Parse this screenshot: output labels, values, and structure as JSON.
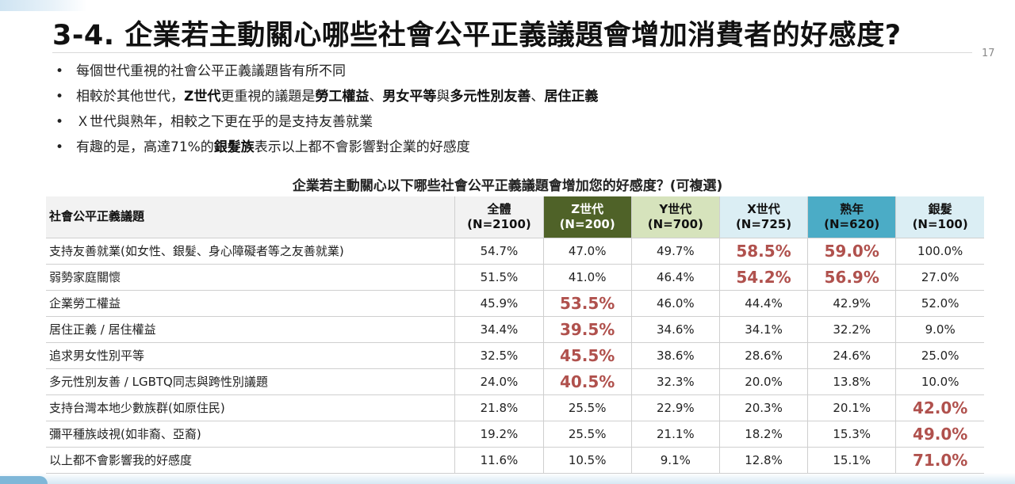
{
  "title": "3-4. 企業若主動關心哪些社會公平正義議題會增加消費者的好感度?",
  "page_number": "17",
  "bullets": [
    {
      "marker": "•",
      "parts": [
        {
          "text": "每個世代重視的社會公平正義議題皆有所不同",
          "bold": false
        }
      ]
    },
    {
      "marker": "•",
      "parts": [
        {
          "text": "相較於其他世代，",
          "bold": false
        },
        {
          "text": "Z世代",
          "bold": true
        },
        {
          "text": "更重視的議題是",
          "bold": false
        },
        {
          "text": "勞工權益",
          "bold": true
        },
        {
          "text": "、",
          "bold": false
        },
        {
          "text": "男女平等",
          "bold": true
        },
        {
          "text": "與",
          "bold": false
        },
        {
          "text": "多元性別友善",
          "bold": true
        },
        {
          "text": "、",
          "bold": false
        },
        {
          "text": "居住正義",
          "bold": true
        }
      ]
    },
    {
      "marker": "•",
      "parts": [
        {
          "text": "Ｘ世代與熟年，相較之下更在乎的是支持友善就業",
          "bold": false
        }
      ]
    },
    {
      "marker": "•",
      "parts": [
        {
          "text": "有趣的是，高達71%的",
          "bold": false
        },
        {
          "text": "銀髮族",
          "bold": true
        },
        {
          "text": "表示以上都不會影響對企業的好感度",
          "bold": false
        }
      ]
    }
  ],
  "table": {
    "title": "企業若主動關心以下哪些社會公平正義議題會增加您的好感度？(可複選)",
    "label_header": "社會公平正義議題",
    "highlight_color": "#b0514d",
    "columns": [
      {
        "name": "全體",
        "n": "(N=2100)",
        "color": "#f2f2f2"
      },
      {
        "name": "Z世代",
        "n": "(N=200)",
        "color": "#4f6228"
      },
      {
        "name": "Y世代",
        "n": "(N=700)",
        "color": "#d6e3bc"
      },
      {
        "name": "X世代",
        "n": "(N=725)",
        "color": "#dbeef4"
      },
      {
        "name": "熟年",
        "n": "(N=620)",
        "color": "#4bacc6"
      },
      {
        "name": "銀髮",
        "n": "(N=100)",
        "color": "#dbeef4"
      }
    ],
    "rows": [
      {
        "label": "支持友善就業(如女性、銀髮、身心障礙者等之友善就業)",
        "values": [
          "54.7%",
          "47.0%",
          "49.7%",
          "58.5%",
          "59.0%",
          "100.0%"
        ],
        "highlight": [
          false,
          false,
          false,
          true,
          true,
          false
        ]
      },
      {
        "label": "弱勢家庭關懷",
        "values": [
          "51.5%",
          "41.0%",
          "46.4%",
          "54.2%",
          "56.9%",
          "27.0%"
        ],
        "highlight": [
          false,
          false,
          false,
          true,
          true,
          false
        ]
      },
      {
        "label": "企業勞工權益",
        "values": [
          "45.9%",
          "53.5%",
          "46.0%",
          "44.4%",
          "42.9%",
          "52.0%"
        ],
        "highlight": [
          false,
          true,
          false,
          false,
          false,
          false
        ]
      },
      {
        "label": "居住正義 / 居住權益",
        "values": [
          "34.4%",
          "39.5%",
          "34.6%",
          "34.1%",
          "32.2%",
          "9.0%"
        ],
        "highlight": [
          false,
          true,
          false,
          false,
          false,
          false
        ]
      },
      {
        "label": "追求男女性別平等",
        "values": [
          "32.5%",
          "45.5%",
          "38.6%",
          "28.6%",
          "24.6%",
          "25.0%"
        ],
        "highlight": [
          false,
          true,
          false,
          false,
          false,
          false
        ]
      },
      {
        "label": "多元性別友善 / LGBTQ同志與跨性別議題",
        "values": [
          "24.0%",
          "40.5%",
          "32.3%",
          "20.0%",
          "13.8%",
          "10.0%"
        ],
        "highlight": [
          false,
          true,
          false,
          false,
          false,
          false
        ]
      },
      {
        "label": "支持台灣本地少數族群(如原住民)",
        "values": [
          "21.8%",
          "25.5%",
          "22.9%",
          "20.3%",
          "20.1%",
          "42.0%"
        ],
        "highlight": [
          false,
          false,
          false,
          false,
          false,
          true
        ]
      },
      {
        "label": "彌平種族歧視(如非裔、亞裔)",
        "values": [
          "19.2%",
          "25.5%",
          "21.1%",
          "18.2%",
          "15.3%",
          "49.0%"
        ],
        "highlight": [
          false,
          false,
          false,
          false,
          false,
          true
        ]
      },
      {
        "label": "以上都不會影響我的好感度",
        "values": [
          "11.6%",
          "10.5%",
          "9.1%",
          "12.8%",
          "15.1%",
          "71.0%"
        ],
        "highlight": [
          false,
          false,
          false,
          false,
          false,
          true
        ]
      }
    ]
  }
}
